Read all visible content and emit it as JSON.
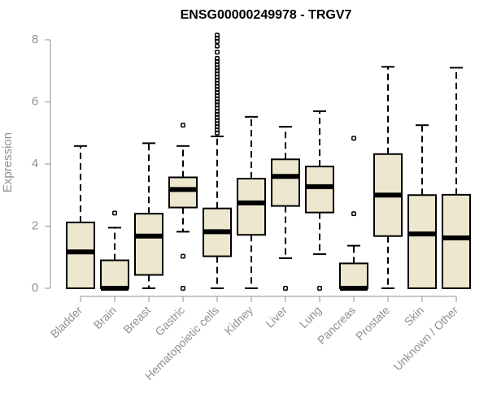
{
  "chart_data": {
    "type": "box",
    "title": "ENSG00000249978 - TRGV7",
    "xlabel": "",
    "ylabel": "Expression",
    "ylim": [
      0,
      8
    ],
    "yticks": [
      0,
      2,
      4,
      6,
      8
    ],
    "grid": false,
    "colors": {
      "box_fill": "#ede7cf",
      "stroke": "#000000",
      "axis": "#909090"
    },
    "categories": [
      "Bladder",
      "Brain",
      "Breast",
      "Gastric",
      "Hematopoietic cells",
      "Kidney",
      "Liver",
      "Lung",
      "Pancreas",
      "Prostate",
      "Skin",
      "Unknown / Other"
    ],
    "boxes": [
      {
        "category": "Bladder",
        "whisker_low": 0.0,
        "q1": 0.0,
        "median": 1.17,
        "q3": 2.12,
        "whisker_high": 4.58,
        "outliers": []
      },
      {
        "category": "Brain",
        "whisker_low": 0.0,
        "q1": 0.0,
        "median": 0.0,
        "q3": 0.9,
        "whisker_high": 1.95,
        "outliers": [
          2.42
        ]
      },
      {
        "category": "Breast",
        "whisker_low": 0.0,
        "q1": 0.43,
        "median": 1.68,
        "q3": 2.4,
        "whisker_high": 4.67,
        "outliers": []
      },
      {
        "category": "Gastric",
        "whisker_low": 1.82,
        "q1": 2.6,
        "median": 3.18,
        "q3": 3.57,
        "whisker_high": 4.58,
        "outliers": [
          5.25,
          1.03,
          0.0
        ]
      },
      {
        "category": "Hematopoietic cells",
        "whisker_low": 0.0,
        "q1": 1.03,
        "median": 1.82,
        "q3": 2.57,
        "whisker_high": 4.89,
        "outliers": [
          5.0,
          5.1,
          5.2,
          5.3,
          5.4,
          5.5,
          5.6,
          5.7,
          5.8,
          5.9,
          6.0,
          6.1,
          6.2,
          6.3,
          6.4,
          6.5,
          6.6,
          6.7,
          6.8,
          6.9,
          7.0,
          7.1,
          7.2,
          7.3,
          7.4,
          7.6,
          7.8,
          7.95,
          8.05,
          8.15
        ]
      },
      {
        "category": "Kidney",
        "whisker_low": 0.0,
        "q1": 1.72,
        "median": 2.75,
        "q3": 3.53,
        "whisker_high": 5.52,
        "outliers": []
      },
      {
        "category": "Liver",
        "whisker_low": 0.97,
        "q1": 2.65,
        "median": 3.6,
        "q3": 4.15,
        "whisker_high": 5.2,
        "outliers": [
          0.0
        ]
      },
      {
        "category": "Lung",
        "whisker_low": 1.1,
        "q1": 2.44,
        "median": 3.27,
        "q3": 3.92,
        "whisker_high": 5.7,
        "outliers": [
          0.0
        ]
      },
      {
        "category": "Pancreas",
        "whisker_low": 0.0,
        "q1": 0.0,
        "median": 0.0,
        "q3": 0.8,
        "whisker_high": 1.37,
        "outliers": [
          4.83,
          2.4
        ]
      },
      {
        "category": "Prostate",
        "whisker_low": 0.0,
        "q1": 1.68,
        "median": 3.0,
        "q3": 4.32,
        "whisker_high": 7.13,
        "outliers": []
      },
      {
        "category": "Skin",
        "whisker_low": 0.0,
        "q1": 0.0,
        "median": 1.75,
        "q3": 3.0,
        "whisker_high": 5.25,
        "outliers": []
      },
      {
        "category": "Unknown / Other",
        "whisker_low": 0.0,
        "q1": 0.0,
        "median": 1.62,
        "q3": 3.01,
        "whisker_high": 7.1,
        "outliers": []
      }
    ]
  }
}
